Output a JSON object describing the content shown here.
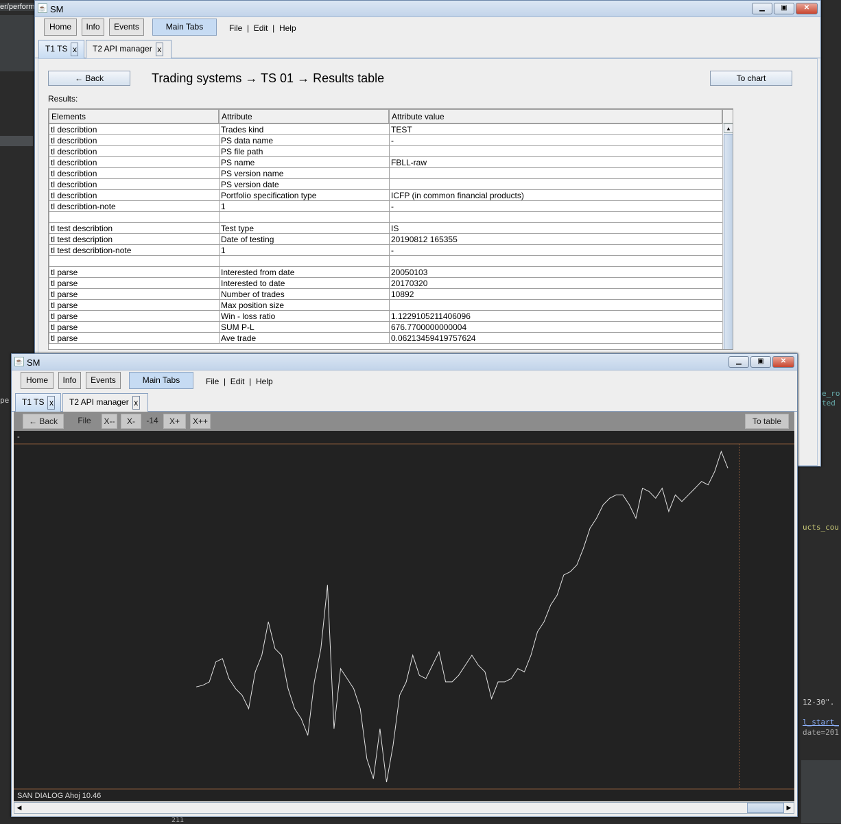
{
  "background": {
    "fragments": [
      "er/perform",
      "pe",
      "e_ro",
      "ted",
      "ucts_cou",
      "12-30\".",
      "l_start_",
      "date=201",
      "211"
    ]
  },
  "window1": {
    "title": "SM",
    "menu_buttons": [
      "Home",
      "Info",
      "Events",
      "Main Tabs"
    ],
    "menus": [
      "File",
      "Edit",
      "Help"
    ],
    "tabs": [
      {
        "label": "T1 TS",
        "close": "x"
      },
      {
        "label": "T2 API manager",
        "close": "x"
      }
    ],
    "back_label": "← Back",
    "heading": "Trading systems → TS 01 → Results table",
    "to_chart_label": "To chart",
    "results_label": "Results:",
    "columns": [
      "Elements",
      "Attribute",
      "Attribute value"
    ],
    "rows": [
      [
        "tl describtion",
        "Trades kind",
        "TEST"
      ],
      [
        "tl describtion",
        "PS data name",
        "-"
      ],
      [
        "tl describtion",
        "PS file path",
        ""
      ],
      [
        "tl describtion",
        "PS name",
        "FBLL-raw"
      ],
      [
        "tl describtion",
        "PS version name",
        ""
      ],
      [
        "tl describtion",
        "PS version date",
        ""
      ],
      [
        "tl describtion",
        "Portfolio specification type",
        "ICFP (in common financial products)"
      ],
      [
        "tl describtion-note",
        "1",
        "-"
      ],
      [
        "",
        "",
        ""
      ],
      [
        "tl test describtion",
        "Test type",
        "IS"
      ],
      [
        "tl test description",
        "Date of testing",
        "20190812  165355"
      ],
      [
        "tl test describtion-note",
        "1",
        "-"
      ],
      [
        "",
        "",
        ""
      ],
      [
        "tl parse",
        "Interested from date",
        "20050103"
      ],
      [
        "tl parse",
        "Interested to date",
        "20170320"
      ],
      [
        "tl parse",
        "Number of trades",
        "10892"
      ],
      [
        "tl parse",
        "Max position size",
        ""
      ],
      [
        "tl parse",
        "Win - loss ratio",
        "1.1229105211406096"
      ],
      [
        "tl parse",
        "SUM P-L",
        "676.7700000000004"
      ],
      [
        "tl parse",
        "Ave trade",
        "0.06213459419757624"
      ]
    ]
  },
  "window2": {
    "title": "SM",
    "menu_buttons": [
      "Home",
      "Info",
      "Events",
      "Main Tabs"
    ],
    "menus": [
      "File",
      "Edit",
      "Help"
    ],
    "tabs": [
      {
        "label": "T1 TS",
        "close": "x"
      },
      {
        "label": "T2 API manager",
        "close": "x"
      }
    ],
    "toolbar": {
      "back": "← Back",
      "file": "File",
      "xmm": "X--",
      "xm": "X-",
      "zoom_value": "-14",
      "xp": "X+",
      "xpp": "X++",
      "to_table": "To table"
    },
    "chart_label": "-",
    "status": "SAN DIALOG Ahoj 10.46"
  },
  "chart_data": {
    "type": "line",
    "title": "",
    "xlabel": "",
    "ylabel": "",
    "grid": false,
    "colors": {
      "background": "#222222",
      "line": "#e0e0e0",
      "frame": "#8a5a3a"
    },
    "values": [
      29.5,
      30,
      31,
      37,
      38,
      32,
      29,
      27,
      23,
      34,
      39,
      49,
      41,
      39,
      29,
      23,
      20,
      15,
      31,
      41,
      60,
      17,
      35,
      32,
      29,
      23,
      8,
      2,
      17,
      1,
      12,
      27,
      31,
      39,
      33,
      32,
      36,
      40,
      31,
      31,
      33,
      36,
      39,
      36,
      34,
      26,
      31,
      31,
      32,
      35,
      34,
      39,
      46,
      49,
      54,
      57,
      63,
      64,
      66,
      71,
      77,
      80,
      84,
      86,
      87,
      87,
      84,
      80,
      89,
      88,
      86,
      89,
      82,
      87,
      85,
      87,
      89,
      91,
      90,
      94,
      100,
      95
    ]
  }
}
